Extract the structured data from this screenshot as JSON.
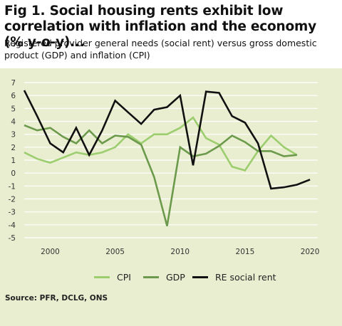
{
  "title": "Fig 1. Social housing rents exhibit low correlation with inflation and the economy (% y-o-y)...",
  "subtitle": "Registered provider general needs (social rent) versus gross domestic product (GDP) and inflation (CPI)",
  "source": "Source: PFR, DCLG, ONS",
  "colors": {
    "panel_bg": "#eaeed1",
    "grid": "#ffffff",
    "cpi": "#9ccd6e",
    "gdp": "#6c9a4c",
    "re": "#111111"
  },
  "chart_data": {
    "type": "line",
    "x": [
      1998,
      1999,
      2000,
      2001,
      2002,
      2003,
      2004,
      2005,
      2006,
      2007,
      2008,
      2009,
      2010,
      2011,
      2012,
      2013,
      2014,
      2015,
      2016,
      2017,
      2018,
      2019,
      2020
    ],
    "series": [
      {
        "name": "CPI",
        "color": "#9ccd6e",
        "values": [
          1.6,
          1.1,
          0.8,
          1.2,
          1.6,
          1.4,
          1.6,
          2.0,
          3.0,
          2.3,
          3.0,
          3.0,
          3.5,
          4.3,
          2.7,
          2.2,
          0.5,
          0.2,
          1.7,
          2.9,
          2.0,
          1.4,
          null
        ]
      },
      {
        "name": "GDP",
        "color": "#6c9a4c",
        "values": [
          3.7,
          3.3,
          3.5,
          2.8,
          2.3,
          3.3,
          2.3,
          2.9,
          2.8,
          2.2,
          -0.3,
          -4.1,
          2.0,
          1.3,
          1.5,
          2.1,
          2.9,
          2.4,
          1.7,
          1.7,
          1.3,
          1.4,
          null
        ]
      },
      {
        "name": "RE social rent",
        "color": "#111111",
        "values": [
          6.4,
          4.4,
          2.3,
          1.6,
          3.5,
          1.4,
          3.3,
          5.6,
          4.7,
          3.8,
          4.9,
          5.1,
          6.0,
          0.6,
          6.3,
          6.2,
          4.4,
          3.9,
          2.3,
          -1.2,
          -1.1,
          -0.9,
          -0.5
        ]
      }
    ],
    "x_ticks": [
      "2000",
      "2005",
      "2010",
      "2015",
      "2020"
    ],
    "y_ticks": [
      "7",
      "6",
      "5",
      "4",
      "3",
      "2",
      "1",
      "0",
      "-1",
      "-2",
      "-3",
      "-4",
      "-5"
    ],
    "ylim": [
      -5,
      7
    ],
    "xlim": [
      1998,
      2020.6
    ],
    "grid": "horizontal",
    "legend_position": "bottom"
  }
}
